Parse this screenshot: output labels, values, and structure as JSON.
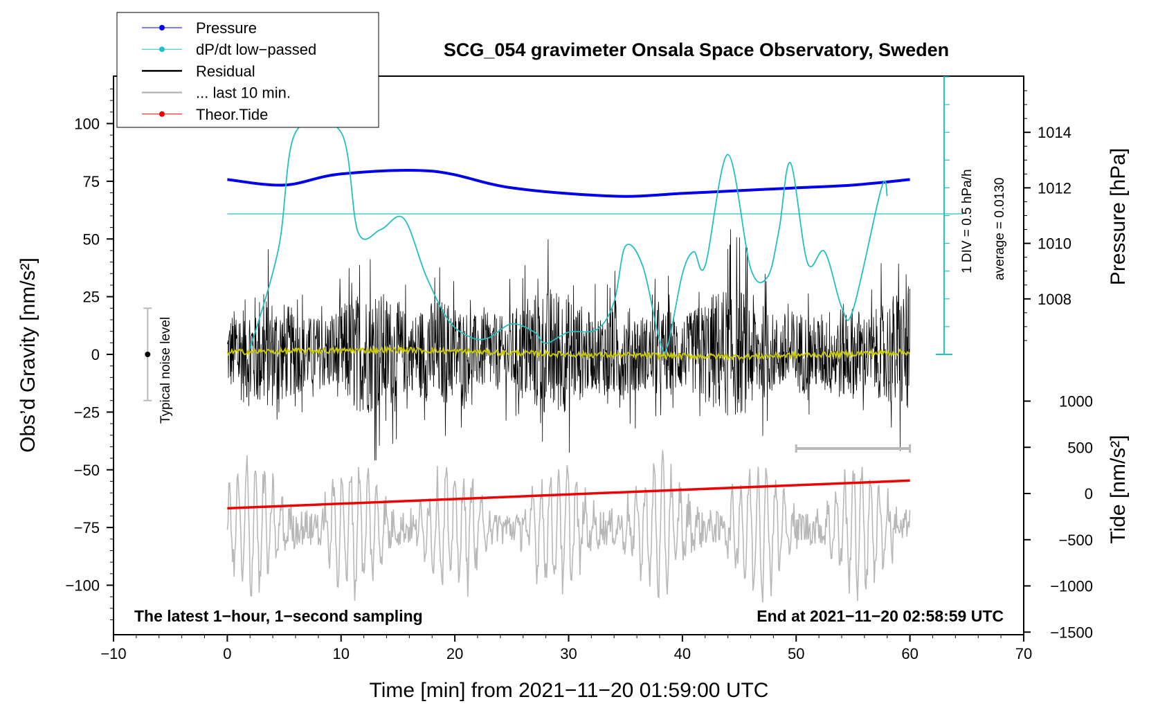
{
  "chart_data": {
    "type": "line",
    "title": "SCG_054 gravimeter Onsala Space Observatory, Sweden",
    "xlabel": "Time [min] from 2021−11−20 01:59:00 UTC",
    "ylabel_left": "Obs’d Gravity [nm/s²]",
    "ylabel_pressure": "Pressure [hPa]",
    "ylabel_tide": "Tide [nm/s²]",
    "xlim": [
      -10,
      70
    ],
    "ylim_left": [
      -120,
      120
    ],
    "x_ticks": [
      "−10",
      "0",
      "10",
      "20",
      "30",
      "40",
      "50",
      "60",
      "70"
    ],
    "y_ticks_left": [
      "100",
      "75",
      "50",
      "25",
      "0",
      "−25",
      "−50",
      "−75",
      "−100"
    ],
    "pressure_ticks": [
      "1014",
      "1012",
      "1010",
      "1008"
    ],
    "tide_ticks": [
      "1000",
      "500",
      "0",
      "−500",
      "−1000",
      "−1500"
    ],
    "legend": [
      {
        "label": "Pressure",
        "color": "#0000ee"
      },
      {
        "label": "dP/dt low−passed",
        "color": "#20c0c0"
      },
      {
        "label": "Residual",
        "color": "#000000"
      },
      {
        "label": "... last 10 min.",
        "color": "#b8b8b8"
      },
      {
        "label": "Theor.Tide",
        "color": "#ee0000"
      }
    ],
    "series": [
      {
        "name": "Pressure",
        "unit": "hPa",
        "x": [
          0,
          5,
          10,
          18,
          25,
          34,
          40,
          45,
          50,
          55,
          60
        ],
        "values": [
          1012.3,
          1012.1,
          1012.5,
          1012.6,
          1012.0,
          1011.7,
          1011.8,
          1011.9,
          1012.0,
          1012.1,
          1012.3
        ]
      },
      {
        "name": "dP/dt low−passed",
        "unit": "DIV",
        "x": [
          2,
          4.5,
          6,
          10,
          11.5,
          13.5,
          15.5,
          17.5,
          19.5,
          21.5,
          23,
          25,
          27,
          28,
          30,
          32.5,
          34,
          35,
          36.5,
          38,
          38.7,
          40,
          41,
          42,
          44,
          46,
          47.5,
          48.5,
          49.5,
          51,
          52.5,
          54,
          55,
          57.5,
          58
        ],
        "values": [
          0.2,
          3.8,
          8.0,
          8.0,
          4.4,
          4.5,
          4.9,
          2.8,
          1.2,
          0.6,
          0.6,
          1.1,
          0.8,
          0.4,
          0.8,
          0.9,
          1.9,
          3.9,
          3.2,
          0.5,
          0.3,
          2.9,
          3.7,
          3.2,
          7.2,
          3.1,
          2.8,
          4.5,
          6.9,
          3.3,
          3.7,
          1.7,
          1.6,
          6.0,
          5.7
        ]
      },
      {
        "name": "Residual",
        "unit": "nm/s²",
        "x": [
          0,
          60
        ],
        "amplitude": [
          -50,
          55
        ],
        "values": [
          0,
          0
        ]
      },
      {
        "name": "Residual mean",
        "unit": "nm/s²",
        "x": [
          0,
          15,
          30,
          45,
          60
        ],
        "values": [
          1,
          2,
          0,
          -1,
          1
        ]
      },
      {
        "name": "... last 10 min.",
        "unit": "nm/s²",
        "x": [
          50,
          60
        ],
        "values": [
          -95,
          -55
        ]
      },
      {
        "name": "Theor.Tide",
        "unit": "nm/s²",
        "x": [
          0,
          60
        ],
        "values": [
          -160,
          140
        ]
      }
    ],
    "noise_level": {
      "label": "Typical noise level",
      "x": -7,
      "center": 0,
      "range": [
        -20,
        20
      ]
    },
    "pressure_scale": {
      "div_label": "1 DIV = 0.5 hPa/h",
      "average_label": "average = 0.0130"
    },
    "last10_bar": {
      "x": [
        50,
        60
      ],
      "y": -40
    },
    "footer_left": "The latest 1−hour, 1−second sampling",
    "footer_right": "End at 2021−11−20 02:58:59 UTC"
  }
}
